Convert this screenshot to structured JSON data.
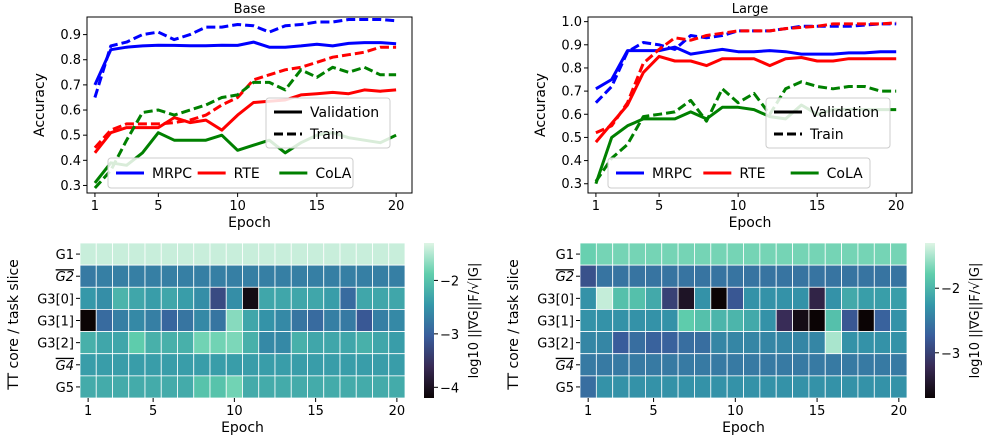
{
  "chart_data": [
    {
      "type": "line",
      "title": "Base",
      "xlabel": "Epoch",
      "ylabel": "Accuracy",
      "xlim": [
        0.5,
        21
      ],
      "ylim": [
        0.27,
        0.97
      ],
      "xticks": [
        1,
        5,
        10,
        15,
        20
      ],
      "yticks": [
        0.3,
        0.4,
        0.5,
        0.6,
        0.7,
        0.8,
        0.9
      ],
      "x": [
        1,
        2,
        3,
        4,
        5,
        6,
        7,
        8,
        9,
        10,
        11,
        12,
        13,
        14,
        15,
        16,
        17,
        18,
        19,
        20
      ],
      "series": [
        {
          "name": "MRPC",
          "split": "Validation",
          "color": "#0000ff",
          "values": [
            0.7,
            0.84,
            0.85,
            0.855,
            0.858,
            0.857,
            0.856,
            0.856,
            0.858,
            0.857,
            0.87,
            0.85,
            0.85,
            0.855,
            0.862,
            0.855,
            0.865,
            0.868,
            0.868,
            0.864
          ]
        },
        {
          "name": "MRPC",
          "split": "Train",
          "color": "#0000ff",
          "values": [
            0.65,
            0.855,
            0.87,
            0.9,
            0.91,
            0.88,
            0.9,
            0.93,
            0.93,
            0.94,
            0.935,
            0.91,
            0.935,
            0.94,
            0.95,
            0.95,
            0.96,
            0.96,
            0.96,
            0.955
          ]
        },
        {
          "name": "RTE",
          "split": "Validation",
          "color": "#ff0000",
          "values": [
            0.43,
            0.51,
            0.53,
            0.53,
            0.53,
            0.57,
            0.55,
            0.56,
            0.52,
            0.58,
            0.63,
            0.635,
            0.64,
            0.66,
            0.665,
            0.67,
            0.665,
            0.68,
            0.675,
            0.68
          ]
        },
        {
          "name": "RTE",
          "split": "Train",
          "color": "#ff0000",
          "values": [
            0.45,
            0.52,
            0.545,
            0.545,
            0.545,
            0.55,
            0.56,
            0.58,
            0.62,
            0.65,
            0.72,
            0.74,
            0.76,
            0.77,
            0.79,
            0.81,
            0.82,
            0.83,
            0.85,
            0.85
          ]
        },
        {
          "name": "CoLA",
          "split": "Validation",
          "color": "#008000",
          "values": [
            0.31,
            0.39,
            0.38,
            0.43,
            0.51,
            0.48,
            0.48,
            0.48,
            0.5,
            0.44,
            0.46,
            0.48,
            0.43,
            0.47,
            0.5,
            0.51,
            0.49,
            0.48,
            0.47,
            0.5
          ]
        },
        {
          "name": "CoLA",
          "split": "Train",
          "color": "#008000",
          "values": [
            0.29,
            0.36,
            0.48,
            0.59,
            0.6,
            0.58,
            0.6,
            0.62,
            0.65,
            0.66,
            0.71,
            0.71,
            0.68,
            0.76,
            0.73,
            0.77,
            0.75,
            0.77,
            0.74,
            0.74
          ]
        }
      ],
      "legend_color": {
        "position": "bottom",
        "entries": [
          "MRPC",
          "RTE",
          "CoLA"
        ]
      },
      "legend_style": {
        "position": "right",
        "entries": [
          "Validation",
          "Train"
        ]
      }
    },
    {
      "type": "line",
      "title": "Large",
      "xlabel": "Epoch",
      "ylabel": "Accuracy",
      "xlim": [
        0.5,
        21
      ],
      "ylim": [
        0.26,
        1.02
      ],
      "xticks": [
        1,
        5,
        10,
        15,
        20
      ],
      "yticks": [
        0.3,
        0.4,
        0.5,
        0.6,
        0.7,
        0.8,
        0.9,
        1.0
      ],
      "x": [
        1,
        2,
        3,
        4,
        5,
        6,
        7,
        8,
        9,
        10,
        11,
        12,
        13,
        14,
        15,
        16,
        17,
        18,
        19,
        20
      ],
      "series": [
        {
          "name": "MRPC",
          "split": "Validation",
          "color": "#0000ff",
          "values": [
            0.71,
            0.75,
            0.875,
            0.875,
            0.875,
            0.89,
            0.86,
            0.87,
            0.88,
            0.87,
            0.87,
            0.875,
            0.87,
            0.86,
            0.86,
            0.86,
            0.865,
            0.865,
            0.87,
            0.87
          ]
        },
        {
          "name": "MRPC",
          "split": "Train",
          "color": "#0000ff",
          "values": [
            0.65,
            0.72,
            0.87,
            0.91,
            0.9,
            0.88,
            0.94,
            0.93,
            0.94,
            0.96,
            0.96,
            0.96,
            0.97,
            0.98,
            0.98,
            0.98,
            0.98,
            0.985,
            0.99,
            0.99
          ]
        },
        {
          "name": "RTE",
          "split": "Validation",
          "color": "#ff0000",
          "values": [
            0.48,
            0.56,
            0.64,
            0.78,
            0.85,
            0.83,
            0.83,
            0.81,
            0.84,
            0.84,
            0.84,
            0.81,
            0.84,
            0.845,
            0.83,
            0.83,
            0.84,
            0.84,
            0.84,
            0.84
          ]
        },
        {
          "name": "RTE",
          "split": "Train",
          "color": "#ff0000",
          "values": [
            0.52,
            0.55,
            0.65,
            0.82,
            0.88,
            0.93,
            0.92,
            0.94,
            0.95,
            0.96,
            0.96,
            0.96,
            0.97,
            0.975,
            0.98,
            0.99,
            0.99,
            0.99,
            0.99,
            0.995
          ]
        },
        {
          "name": "CoLA",
          "split": "Validation",
          "color": "#008000",
          "values": [
            0.3,
            0.5,
            0.55,
            0.58,
            0.58,
            0.58,
            0.61,
            0.58,
            0.63,
            0.63,
            0.62,
            0.59,
            0.58,
            0.64,
            0.6,
            0.62,
            0.62,
            0.62,
            0.62,
            0.62
          ]
        },
        {
          "name": "CoLA",
          "split": "Train",
          "color": "#008000",
          "values": [
            0.31,
            0.41,
            0.47,
            0.59,
            0.6,
            0.61,
            0.66,
            0.57,
            0.71,
            0.65,
            0.69,
            0.6,
            0.71,
            0.74,
            0.72,
            0.71,
            0.72,
            0.72,
            0.7,
            0.7
          ]
        }
      ],
      "legend_color": {
        "position": "bottom",
        "entries": [
          "MRPC",
          "RTE",
          "CoLA"
        ]
      },
      "legend_style": {
        "position": "right",
        "entries": [
          "Validation",
          "Train"
        ]
      }
    },
    {
      "type": "heatmap",
      "title": "Base",
      "xlabel": "Epoch",
      "ylabel": "TT core / task slice",
      "xticks": [
        1,
        5,
        10,
        15,
        20
      ],
      "rows": [
        "G1",
        "G2",
        "G3[0]",
        "G3[1]",
        "G3[2]",
        "G4",
        "G5"
      ],
      "overlined_rows": [
        "G2",
        "G4"
      ],
      "colorbar": {
        "label": "log10 ||∇G||F/√|G|",
        "range": [
          -4.2,
          -1.3
        ],
        "ticks": [
          -2,
          -3,
          -4
        ],
        "tick_labels": [
          "−2",
          "−3",
          "−4"
        ]
      },
      "values": [
        [
          -1.4,
          -1.4,
          -1.4,
          -1.4,
          -1.4,
          -1.4,
          -1.4,
          -1.4,
          -1.4,
          -1.4,
          -1.4,
          -1.4,
          -1.4,
          -1.4,
          -1.4,
          -1.4,
          -1.4,
          -1.4,
          -1.4,
          -1.4
        ],
        [
          -2.75,
          -2.7,
          -2.7,
          -2.7,
          -2.7,
          -2.7,
          -2.7,
          -2.7,
          -2.7,
          -2.7,
          -2.7,
          -2.7,
          -2.7,
          -2.7,
          -2.7,
          -2.7,
          -2.7,
          -2.7,
          -2.7,
          -2.7
        ],
        [
          -2.45,
          -2.55,
          -2.15,
          -2.3,
          -2.4,
          -2.3,
          -2.4,
          -2.55,
          -3.25,
          -2.55,
          -4.1,
          -2.3,
          -2.3,
          -2.3,
          -2.3,
          -2.4,
          -2.9,
          -2.3,
          -2.3,
          -2.3
        ],
        [
          -4.2,
          -2.9,
          -2.7,
          -2.6,
          -2.7,
          -2.95,
          -2.8,
          -2.6,
          -2.8,
          -1.7,
          -2.3,
          -2.5,
          -2.6,
          -2.8,
          -2.9,
          -2.7,
          -2.75,
          -3.1,
          -2.7,
          -2.6
        ],
        [
          -2.2,
          -2.3,
          -2.3,
          -1.9,
          -2.2,
          -2.2,
          -2.2,
          -1.8,
          -1.8,
          -1.75,
          -2.2,
          -2.6,
          -2.6,
          -2.2,
          -2.3,
          -2.3,
          -2.3,
          -2.2,
          -2.3,
          -2.4
        ],
        [
          -2.4,
          -2.4,
          -2.4,
          -2.4,
          -2.4,
          -2.4,
          -2.4,
          -2.4,
          -2.4,
          -2.4,
          -2.4,
          -2.4,
          -2.4,
          -2.4,
          -2.4,
          -2.4,
          -2.4,
          -2.4,
          -2.4,
          -2.4
        ],
        [
          -2.25,
          -2.25,
          -2.25,
          -2.25,
          -2.25,
          -2.25,
          -2.25,
          -2.0,
          -2.0,
          -1.8,
          -2.25,
          -2.25,
          -2.25,
          -2.25,
          -2.25,
          -2.25,
          -2.25,
          -2.25,
          -2.25,
          -2.25
        ]
      ]
    },
    {
      "type": "heatmap",
      "title": "Large",
      "xlabel": "Epoch",
      "ylabel": "TT core / task slice",
      "xticks": [
        1,
        5,
        10,
        15,
        20
      ],
      "rows": [
        "G1",
        "G2",
        "G3[0]",
        "G3[1]",
        "G3[2]",
        "G4",
        "G5"
      ],
      "overlined_rows": [
        "G2",
        "G4"
      ],
      "colorbar": {
        "label": "log10 ||∇G||F/√|G|",
        "range": [
          -3.7,
          -1.3
        ],
        "ticks": [
          -2,
          -3
        ],
        "tick_labels": [
          "−2",
          "−3"
        ]
      },
      "values": [
        [
          -1.75,
          -1.7,
          -1.7,
          -1.7,
          -1.7,
          -1.7,
          -1.7,
          -1.7,
          -1.7,
          -1.7,
          -1.7,
          -1.7,
          -1.7,
          -1.7,
          -1.7,
          -1.7,
          -1.7,
          -1.7,
          -1.7,
          -1.7
        ],
        [
          -2.85,
          -2.55,
          -2.55,
          -2.55,
          -2.55,
          -2.55,
          -2.55,
          -2.55,
          -2.55,
          -2.55,
          -2.55,
          -2.55,
          -2.55,
          -2.55,
          -2.55,
          -2.55,
          -2.55,
          -2.55,
          -2.55,
          -2.55
        ],
        [
          -2.3,
          -1.4,
          -1.9,
          -1.9,
          -2.1,
          -3.0,
          -3.5,
          -2.3,
          -3.7,
          -2.8,
          -2.3,
          -2.3,
          -2.3,
          -2.3,
          -3.3,
          -2.3,
          -2.1,
          -2.2,
          -2.2,
          -2.2
        ],
        [
          -2.3,
          -2.3,
          -2.3,
          -2.3,
          -2.3,
          -2.3,
          -1.8,
          -1.9,
          -2.0,
          -2.0,
          -2.1,
          -2.3,
          -3.2,
          -3.6,
          -3.7,
          -1.9,
          -2.8,
          -3.7,
          -2.7,
          -2.3
        ],
        [
          -2.4,
          -2.4,
          -2.75,
          -2.6,
          -2.7,
          -2.7,
          -2.6,
          -2.6,
          -2.4,
          -2.4,
          -2.4,
          -2.4,
          -2.4,
          -2.4,
          -2.4,
          -1.5,
          -2.3,
          -2.3,
          -2.3,
          -2.3
        ],
        [
          -2.5,
          -2.5,
          -2.5,
          -2.5,
          -2.5,
          -2.5,
          -2.5,
          -2.5,
          -2.5,
          -2.5,
          -2.5,
          -2.5,
          -2.5,
          -2.5,
          -2.5,
          -2.5,
          -2.5,
          -2.5,
          -2.5,
          -2.5
        ],
        [
          -2.6,
          -2.3,
          -2.3,
          -2.3,
          -2.3,
          -2.3,
          -2.3,
          -2.3,
          -2.3,
          -2.3,
          -2.3,
          -2.3,
          -2.3,
          -2.3,
          -2.3,
          -2.3,
          -2.3,
          -2.3,
          -2.3,
          -2.3
        ]
      ]
    }
  ]
}
